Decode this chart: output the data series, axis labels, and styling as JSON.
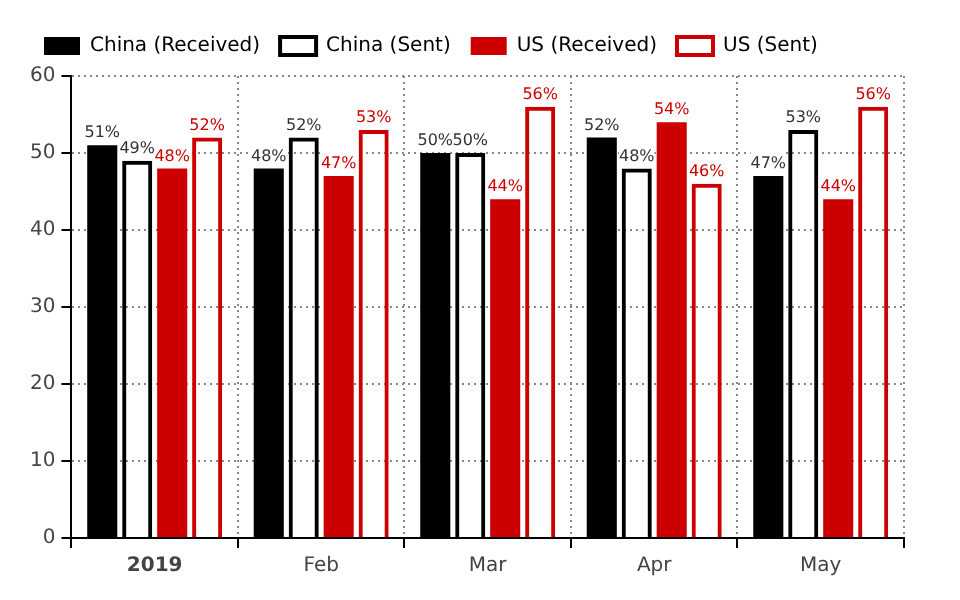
{
  "chart_data": {
    "type": "bar",
    "categories": [
      "2019",
      "Feb",
      "Mar",
      "Apr",
      "May"
    ],
    "series": [
      {
        "name": "China (Received)",
        "color": "#000000",
        "values": [
          51,
          48,
          50,
          52,
          47
        ],
        "value_labels": [
          "51%",
          "48%",
          "50%",
          "52%",
          "47%"
        ]
      },
      {
        "name": "China (Sent)",
        "color": "#000000",
        "values": [
          49,
          52,
          50,
          48,
          53
        ],
        "value_labels": [
          "49%",
          "52%",
          "50%",
          "48%",
          "53%"
        ]
      },
      {
        "name": "US (Received)",
        "color": "#cc0000",
        "values": [
          48,
          47,
          44,
          54,
          44
        ],
        "value_labels": [
          "48%",
          "47%",
          "44%",
          "54%",
          "44%"
        ]
      },
      {
        "name": "US (Sent)",
        "color": "#cc0000",
        "values": [
          52,
          53,
          56,
          46,
          56
        ],
        "value_labels": [
          "52%",
          "53%",
          "56%",
          "46%",
          "56%"
        ]
      }
    ],
    "ylim": [
      0,
      60
    ],
    "yticks": [
      0,
      10,
      20,
      30,
      40,
      50,
      60
    ],
    "grid": true,
    "legend": "top left"
  }
}
